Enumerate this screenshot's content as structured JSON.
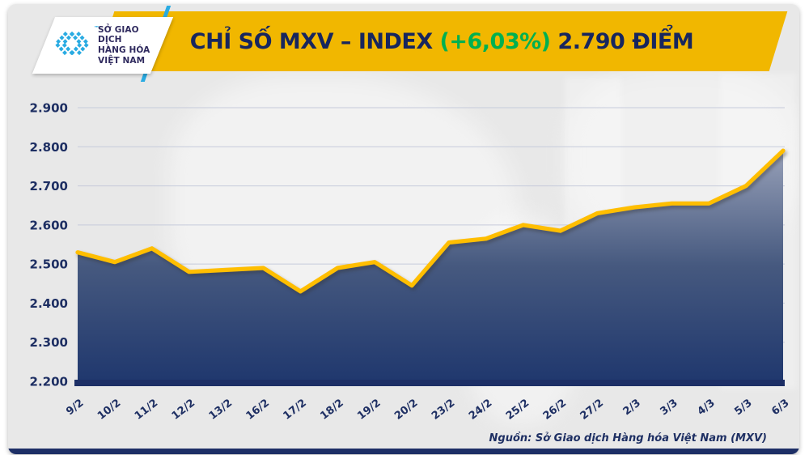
{
  "header": {
    "logo": {
      "line1": "SỞ GIAO DỊCH",
      "line2": "HÀNG HÓA",
      "line3": "VIỆT NAM",
      "tm": "™"
    },
    "title": {
      "part1": "CHỈ SỐ MXV – INDEX ",
      "change": "(+6,03%)",
      "part2": " 2.790 ĐIỂM"
    }
  },
  "footer": {
    "source": "Nguồn: Sở Giao dịch Hàng hóa Việt Nam (MXV)"
  },
  "colors": {
    "banner_yellow": "#F1B700",
    "line_yellow": "#FFBE00",
    "navy_text": "#1E2F63",
    "title_navy": "#17265E",
    "green_change": "#00B050",
    "logo_cyan": "#29ABE2",
    "logo_text": "#2F2A5E",
    "axis_bar": "#1D2F66",
    "area_top": "#97A0B8",
    "area_mid": "#46597F",
    "area_bottom": "#20386E",
    "card_bg": "#E8E8E8"
  },
  "chart_data": {
    "type": "area",
    "title": "CHỈ SỐ MXV – INDEX (+6,03%) 2.790 ĐIỂM",
    "categories": [
      "9/2",
      "10/2",
      "11/2",
      "12/2",
      "13/2",
      "16/2",
      "17/2",
      "18/2",
      "19/2",
      "20/2",
      "23/2",
      "24/2",
      "25/2",
      "26/2",
      "27/2",
      "2/3",
      "3/3",
      "4/3",
      "5/3",
      "6/3"
    ],
    "values": [
      2530,
      2505,
      2540,
      2480,
      2485,
      2490,
      2430,
      2490,
      2505,
      2445,
      2555,
      2565,
      2600,
      2585,
      2630,
      2645,
      2655,
      2655,
      2700,
      2790
    ],
    "last_value_label": "2.790",
    "change_pct_label": "+6,03%",
    "ylim": [
      2200,
      2900
    ],
    "yticks": [
      2200,
      2300,
      2400,
      2500,
      2600,
      2700,
      2800,
      2900
    ],
    "ytick_labels": [
      "2.200",
      "2.300",
      "2.400",
      "2.500",
      "2.600",
      "2.700",
      "2.800",
      "2.900"
    ],
    "xlabel": "",
    "ylabel": "",
    "grid": "horizontal",
    "legend": "none"
  }
}
